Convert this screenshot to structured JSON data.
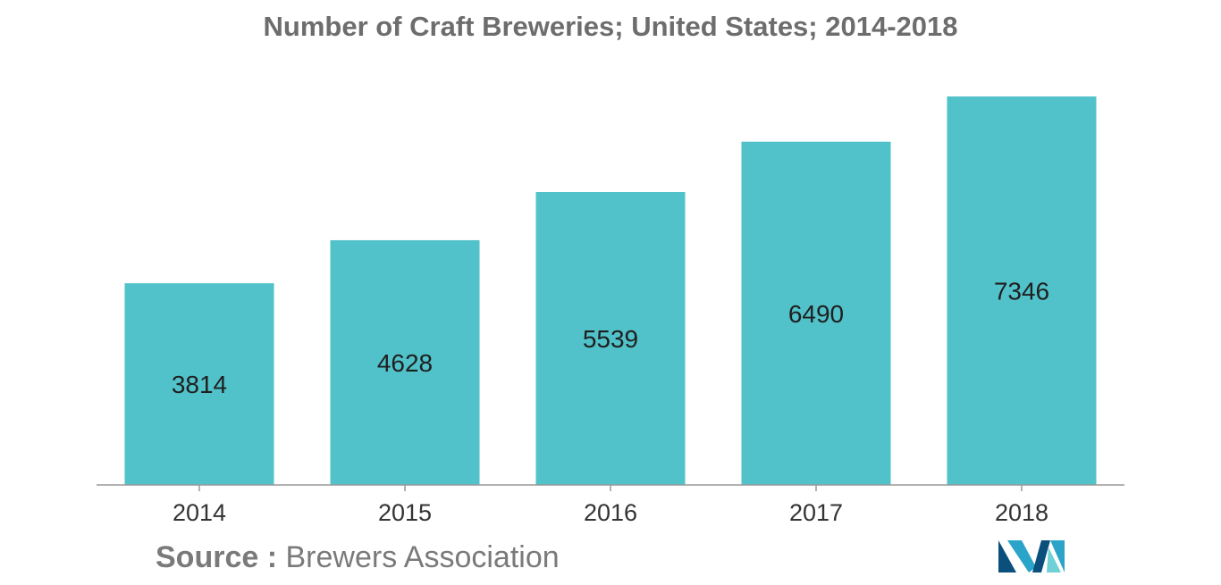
{
  "chart_data": {
    "type": "bar",
    "title": "Number of Craft Breweries; United States; 2014-2018",
    "categories": [
      "2014",
      "2015",
      "2016",
      "2017",
      "2018"
    ],
    "values": [
      3814,
      4628,
      5539,
      6490,
      7346
    ],
    "data_labels": [
      "3814",
      "4628",
      "5539",
      "6490",
      "7346"
    ],
    "xlabel": "",
    "ylabel": "",
    "ylim": [
      0,
      7346
    ],
    "grid": false,
    "legend": "none",
    "colors": {
      "bar": "#51c2ca",
      "axis": "#999999",
      "title": "#6d6d6d",
      "source": "#7a7a7a"
    }
  },
  "source": {
    "prefix": "Source :",
    "text": "Brewers Association"
  },
  "logo": {
    "icon": "company-logo-icon",
    "colors": [
      "#0b4f7c",
      "#2aa4c8",
      "#6fd0d6"
    ]
  }
}
